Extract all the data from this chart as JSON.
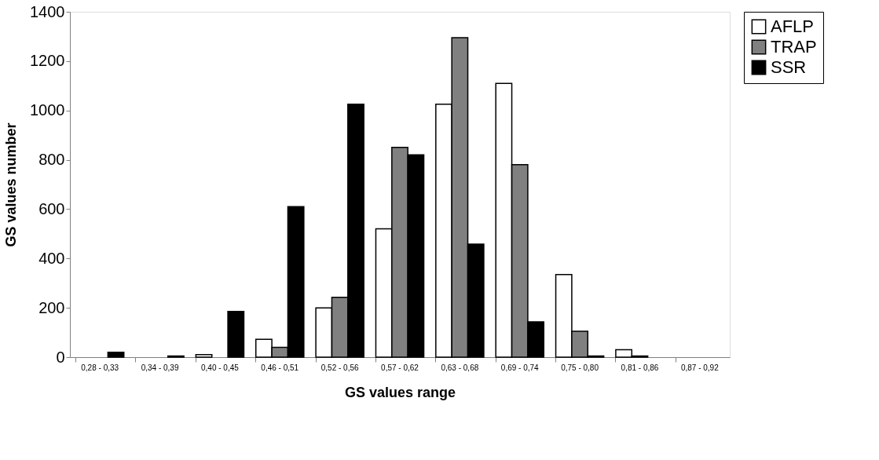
{
  "chart_data": {
    "type": "bar",
    "xlabel": "GS values range",
    "ylabel": "GS values number",
    "categories": [
      "0,28 - 0,33",
      "0,34 - 0,39",
      "0,40 - 0,45",
      "0,46 - 0,51",
      "0,52 - 0,56",
      "0,57 - 0,62",
      "0,63 - 0,68",
      "0,69 - 0,74",
      "0,75 - 0,80",
      "0,81 - 0,86",
      "0,87 - 0,92"
    ],
    "series": [
      {
        "name": "AFLP",
        "color": "#ffffff",
        "values": [
          0,
          0,
          10,
          72,
          200,
          520,
          1025,
          1110,
          335,
          30,
          0
        ]
      },
      {
        "name": "TRAP",
        "color": "#808080",
        "values": [
          0,
          0,
          0,
          40,
          243,
          850,
          1295,
          780,
          105,
          5,
          0
        ]
      },
      {
        "name": "SSR",
        "color": "#000000",
        "values": [
          20,
          5,
          185,
          610,
          1025,
          820,
          458,
          143,
          5,
          0,
          0
        ]
      }
    ],
    "ylim": [
      0,
      1400
    ],
    "yticks": [
      0,
      200,
      400,
      600,
      800,
      1000,
      1200,
      1400
    ],
    "grid": false,
    "legend": "right"
  }
}
